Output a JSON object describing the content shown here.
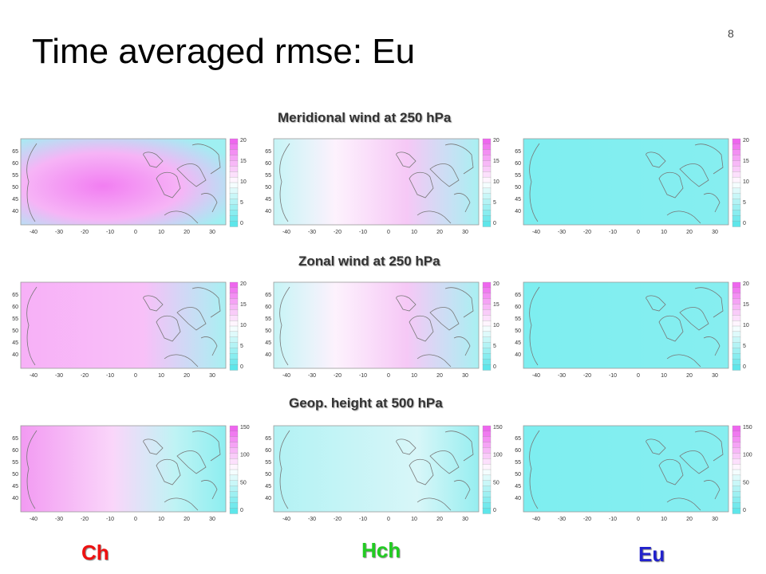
{
  "slide": {
    "title": "Time averaged rmse: Eu",
    "number": "8"
  },
  "rows": [
    {
      "title": "Meridional wind at 250 hPa",
      "scale_labels": [
        "20",
        "15",
        "10",
        "5",
        "0"
      ]
    },
    {
      "title": "Zonal wind at 250 hPa",
      "scale_labels": [
        "20",
        "15",
        "10",
        "5",
        "0"
      ]
    },
    {
      "title": "Geop. height at 500 hPa",
      "scale_labels": [
        "150",
        "100",
        "50",
        "0"
      ]
    }
  ],
  "map_axes": {
    "lon_ticks": [
      "-40",
      "-30",
      "-20",
      "-10",
      "0",
      "10",
      "20",
      "30"
    ],
    "lat_ticks": [
      "65",
      "60",
      "55",
      "50",
      "45",
      "40"
    ]
  },
  "columns": [
    {
      "label": "Ch",
      "color": "#e11111"
    },
    {
      "label": "Hch",
      "color": "#22cc22"
    },
    {
      "label": "Eu",
      "color": "#2222cc"
    }
  ],
  "colors": {
    "low": "#5ee6ea",
    "mid": "#ffffff",
    "high": "#ee66ee"
  }
}
